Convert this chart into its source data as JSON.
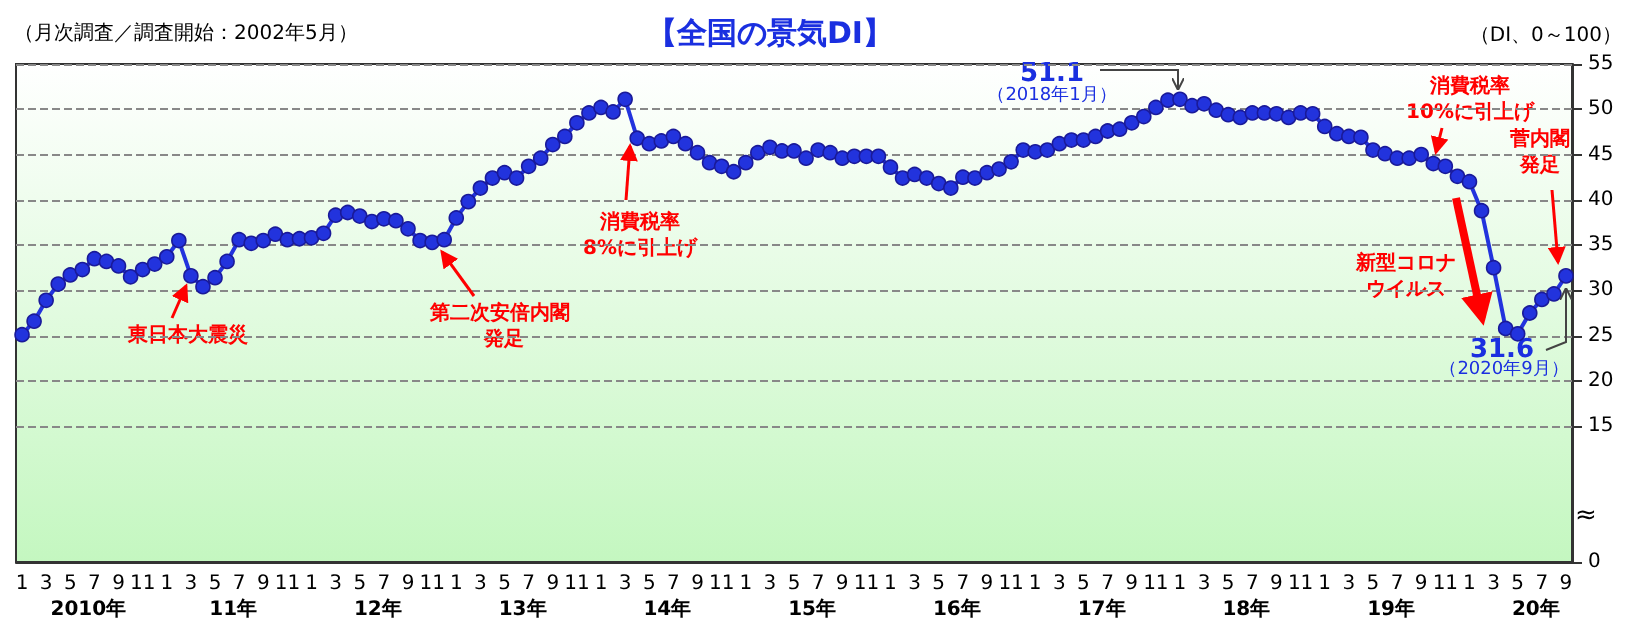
{
  "chart_data": {
    "type": "line",
    "title": "【全国の景気DI】",
    "subtitle": "（月次調査／調査開始：2002年5月）",
    "ylabel": "（DI、0～100）",
    "categories": [
      "1",
      null,
      "3",
      null,
      "5",
      null,
      "7",
      null,
      "9",
      null,
      "11",
      null,
      "1",
      null,
      "3",
      null,
      "5",
      null,
      "7",
      null,
      "9",
      null,
      "11",
      null,
      "1",
      null,
      "3",
      null,
      "5",
      null,
      "7",
      null,
      "9",
      null,
      "11",
      null,
      "1",
      null,
      "3",
      null,
      "5",
      null,
      "7",
      null,
      "9",
      null,
      "11",
      null,
      "1",
      null,
      "3",
      null,
      "5",
      null,
      "7",
      null,
      "9",
      null,
      "11",
      null,
      "1",
      null,
      "3",
      null,
      "5",
      null,
      "7",
      null,
      "9",
      null,
      "11",
      null,
      "1",
      null,
      "3",
      null,
      "5",
      null,
      "7",
      null,
      "9",
      null,
      "11",
      null,
      "1",
      null,
      "3",
      null,
      "5",
      null,
      "7",
      null,
      "9",
      null,
      "11",
      null,
      "1",
      null,
      "3",
      null,
      "5",
      null,
      "7",
      null,
      "9",
      null,
      "11",
      null,
      "1",
      null,
      "3",
      null,
      "5",
      null,
      "7",
      null,
      "9",
      null,
      "11",
      null,
      "1",
      null,
      "3",
      null,
      "5",
      null,
      "7",
      null,
      "9"
    ],
    "series": [
      {
        "color": "#2233dd",
        "values": [
          25.1,
          26.6,
          28.9,
          30.7,
          31.7,
          32.3,
          33.5,
          33.2,
          32.7,
          31.5,
          32.3,
          32.9,
          33.7,
          35.5,
          31.6,
          30.4,
          31.4,
          33.2,
          35.6,
          35.2,
          35.5,
          36.2,
          35.6,
          35.7,
          35.8,
          36.3,
          38.3,
          38.6,
          38.2,
          37.6,
          37.9,
          37.7,
          36.8,
          35.5,
          35.3,
          35.6,
          38.0,
          39.8,
          41.3,
          42.4,
          43.0,
          42.4,
          43.7,
          44.6,
          46.1,
          47.0,
          48.5,
          49.6,
          50.2,
          49.7,
          51.1,
          46.8,
          46.2,
          46.5,
          47.0,
          46.2,
          45.2,
          44.1,
          43.7,
          43.1,
          44.1,
          45.2,
          45.8,
          45.4,
          45.4,
          44.6,
          45.5,
          45.2,
          44.6,
          44.8,
          44.8,
          44.8,
          43.6,
          42.4,
          42.8,
          42.4,
          41.8,
          41.3,
          42.5,
          42.4,
          43.0,
          43.4,
          44.2,
          45.5,
          45.3,
          45.5,
          46.2,
          46.6,
          46.6,
          47.0,
          47.6,
          47.8,
          48.5,
          49.2,
          50.2,
          51.0,
          51.1,
          50.4,
          50.6,
          49.9,
          49.4,
          49.1,
          49.6,
          49.6,
          49.5,
          49.1,
          49.6,
          49.5,
          48.1,
          47.3,
          47.0,
          46.9,
          45.5,
          45.1,
          44.6,
          44.6,
          45.0,
          44.0,
          43.7,
          42.6,
          42.0,
          38.8,
          32.5,
          25.8,
          25.2,
          27.5,
          29.0,
          29.6,
          31.6
        ]
      }
    ],
    "ylim": [
      0,
      55
    ],
    "yticks": [
      0,
      15,
      20,
      25,
      30,
      35,
      40,
      45,
      50,
      55
    ],
    "grid": "y",
    "marker": "circle",
    "annotations": [
      "2010年",
      "11年",
      "12年",
      "13年",
      "14年",
      "15年",
      "16年",
      "17年",
      "18年",
      "19年",
      "20年",
      "東日本大震災",
      "第二次安倍内閣",
      "発足",
      "消費税率\n8%に引上げ",
      "51.1",
      "（2018年1月）",
      "消費税率\n10%に引上げ",
      "菅内閣",
      "発足",
      "新型コロナ",
      "ウイルス",
      "31.6",
      "（2020年9月）",
      "≈"
    ]
  }
}
